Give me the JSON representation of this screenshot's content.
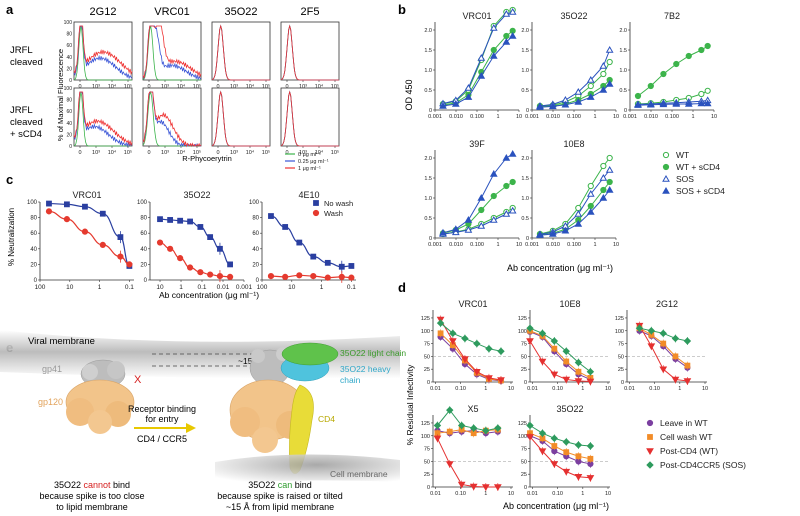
{
  "panel_letters": {
    "a": "a",
    "b": "b",
    "c": "c",
    "d": "d",
    "e": "e"
  },
  "panel_a": {
    "columns": [
      "2G12",
      "VRC01",
      "35O22",
      "2F5"
    ],
    "rows": [
      "JRFL\ncleaved",
      "JRFL\ncleaved\n+ sCD4"
    ],
    "ylabel": "% of Maximal Fluorescence",
    "xlabel": "R-Phycoerytrin",
    "y_ticks": [
      "0",
      "20",
      "40",
      "60",
      "80",
      "100"
    ],
    "x_ticks": [
      "0",
      "10³",
      "10⁴",
      "10⁵"
    ],
    "legend": [
      {
        "label": "0  μg  ml⁻¹",
        "color": "#3cb44b"
      },
      {
        "label": "0.25 μg  ml⁻¹",
        "color": "#3a55d6"
      },
      {
        "label": "1 μg  ml⁻¹",
        "color": "#ee3333"
      }
    ]
  },
  "chart_data": [
    {
      "panel": "b",
      "type": "line",
      "ylabel": "OD 450",
      "xlabel": "Ab concentration (μg ml⁻¹)",
      "x_scale": "log",
      "xlim": [
        0.001,
        10
      ],
      "ylim": [
        0,
        2.5
      ],
      "x_ticks": [
        "0.001",
        "0.010",
        "0.100",
        "1",
        "10"
      ],
      "y_ticks": [
        "0",
        "0.5",
        "1.0",
        "1.5",
        "2.0",
        "2.5"
      ],
      "x": [
        0.0024,
        0.0098,
        0.039,
        0.16,
        0.63,
        2.5,
        5
      ],
      "legend": [
        "WT",
        "WT + sCD4",
        "SOS",
        "SOS + sCD4"
      ],
      "subplots": [
        {
          "title": "VRC01",
          "series": [
            {
              "name": "WT",
              "values": [
                0.15,
                0.22,
                0.5,
                1.25,
                2.1,
                2.45,
                2.5
              ]
            },
            {
              "name": "WT + sCD4",
              "values": [
                0.12,
                0.18,
                0.38,
                0.95,
                1.5,
                1.85,
                1.98
              ]
            },
            {
              "name": "SOS",
              "values": [
                0.16,
                0.24,
                0.55,
                1.3,
                2.05,
                2.4,
                2.45
              ]
            },
            {
              "name": "SOS + sCD4",
              "values": [
                0.1,
                0.15,
                0.32,
                0.85,
                1.35,
                1.7,
                1.85
              ]
            }
          ]
        },
        {
          "title": "35O22",
          "series": [
            {
              "name": "WT",
              "values": [
                0.1,
                0.12,
                0.2,
                0.35,
                0.6,
                0.9,
                1.2
              ]
            },
            {
              "name": "WT + sCD4",
              "values": [
                0.08,
                0.1,
                0.15,
                0.25,
                0.4,
                0.6,
                0.75
              ]
            },
            {
              "name": "SOS",
              "values": [
                0.1,
                0.14,
                0.25,
                0.45,
                0.75,
                1.1,
                1.5
              ]
            },
            {
              "name": "SOS + sCD4",
              "values": [
                0.07,
                0.09,
                0.13,
                0.2,
                0.32,
                0.5,
                0.65
              ]
            }
          ]
        },
        {
          "title": "7B2",
          "series": [
            {
              "name": "WT",
              "values": [
                0.15,
                0.17,
                0.2,
                0.25,
                0.3,
                0.4,
                0.48
              ]
            },
            {
              "name": "WT + sCD4",
              "values": [
                0.35,
                0.6,
                0.9,
                1.15,
                1.35,
                1.5,
                1.6
              ]
            },
            {
              "name": "SOS",
              "values": [
                0.14,
                0.15,
                0.17,
                0.18,
                0.2,
                0.22,
                0.24
              ]
            },
            {
              "name": "SOS + sCD4",
              "values": [
                0.12,
                0.13,
                0.14,
                0.15,
                0.15,
                0.16,
                0.16
              ]
            }
          ]
        },
        {
          "title": "39F",
          "series": [
            {
              "name": "WT",
              "values": [
                0.1,
                0.15,
                0.22,
                0.35,
                0.5,
                0.65,
                0.75
              ]
            },
            {
              "name": "WT + sCD4",
              "values": [
                0.12,
                0.2,
                0.35,
                0.7,
                1.05,
                1.3,
                1.4
              ]
            },
            {
              "name": "SOS",
              "values": [
                0.1,
                0.14,
                0.2,
                0.3,
                0.45,
                0.6,
                0.68
              ]
            },
            {
              "name": "SOS + sCD4",
              "values": [
                0.13,
                0.22,
                0.45,
                1.0,
                1.6,
                2.0,
                2.1
              ]
            }
          ]
        },
        {
          "title": "10E8",
          "series": [
            {
              "name": "WT",
              "values": [
                0.1,
                0.18,
                0.35,
                0.75,
                1.3,
                1.8,
                2.0
              ]
            },
            {
              "name": "WT + sCD4",
              "values": [
                0.08,
                0.12,
                0.22,
                0.45,
                0.8,
                1.2,
                1.4
              ]
            },
            {
              "name": "SOS",
              "values": [
                0.09,
                0.15,
                0.3,
                0.6,
                1.1,
                1.5,
                1.7
              ]
            },
            {
              "name": "SOS + sCD4",
              "values": [
                0.07,
                0.1,
                0.18,
                0.35,
                0.65,
                1.0,
                1.2
              ]
            }
          ]
        }
      ]
    },
    {
      "panel": "c",
      "type": "line",
      "ylabel": "% Neutralization",
      "xlabel": "Ab concentration (μg ml⁻¹)",
      "ylim": [
        0,
        100
      ],
      "y_ticks": [
        "0",
        "20",
        "40",
        "60",
        "80",
        "100"
      ],
      "legend": [
        "No wash",
        "Wash"
      ],
      "subplots": [
        {
          "title": "VRC01",
          "x_ticks": [
            "100",
            "10",
            "1",
            "0.1"
          ],
          "xlim": [
            100,
            0.07
          ],
          "x": [
            50,
            12.5,
            3.1,
            0.78,
            0.2,
            0.1
          ],
          "series": [
            {
              "name": "No wash",
              "values": [
                98,
                97,
                94,
                85,
                55,
                18
              ]
            },
            {
              "name": "Wash",
              "values": [
                88,
                78,
                62,
                45,
                30,
                20
              ]
            }
          ]
        },
        {
          "title": "35O22",
          "x_ticks": [
            "10",
            "1",
            "0.1",
            "0.01",
            "0.001"
          ],
          "xlim": [
            30,
            0.001
          ],
          "x": [
            10,
            3.3,
            1.1,
            0.37,
            0.12,
            0.041,
            0.014,
            0.0046
          ],
          "series": [
            {
              "name": "No wash",
              "values": [
                78,
                77,
                76,
                75,
                68,
                55,
                40,
                20
              ]
            },
            {
              "name": "Wash",
              "values": [
                48,
                40,
                28,
                16,
                10,
                7,
                5,
                4
              ]
            }
          ]
        },
        {
          "title": "4E10",
          "x_ticks": [
            "100",
            "10",
            "1",
            "0.1"
          ],
          "xlim": [
            100,
            0.07
          ],
          "x": [
            50,
            16.7,
            5.6,
            1.9,
            0.62,
            0.21,
            0.1
          ],
          "series": [
            {
              "name": "No wash",
              "values": [
                82,
                68,
                48,
                30,
                22,
                17,
                18
              ]
            },
            {
              "name": "Wash",
              "values": [
                5,
                4,
                6,
                5,
                3,
                4,
                3
              ]
            }
          ]
        }
      ]
    },
    {
      "panel": "d",
      "type": "line",
      "ylabel": "% Residual Infectivity",
      "xlabel": "Ab concentration (μg ml⁻¹)",
      "x_scale": "log",
      "xlim": [
        0.008,
        12
      ],
      "ylim": [
        0,
        125
      ],
      "y_ticks": [
        "0",
        "25",
        "50",
        "75",
        "100",
        "125"
      ],
      "x_ticks": [
        "0.01",
        "0.10",
        "1",
        "10"
      ],
      "legend": [
        "Leave in WT",
        "Cell wash  WT",
        "Post-CD4 (WT)",
        "Post-CD4CCR5 (SOS)"
      ],
      "subplots": [
        {
          "title": "VRC01",
          "x": [
            0.016,
            0.049,
            0.148,
            0.44,
            1.33,
            4
          ],
          "series": [
            {
              "name": "Leave in WT",
              "values": [
                88,
                65,
                35,
                15,
                5,
                2
              ]
            },
            {
              "name": "Cell wash  WT",
              "values": [
                95,
                72,
                42,
                18,
                6,
                3
              ]
            },
            {
              "name": "Post-CD4 (WT)",
              "values": [
                122,
                80,
                45,
                20,
                8,
                4
              ]
            },
            {
              "name": "Post-CD4CCR5 (SOS)",
              "values": [
                115,
                95,
                85,
                75,
                65,
                60
              ]
            }
          ]
        },
        {
          "title": "10E8",
          "x": [
            0.008,
            0.025,
            0.074,
            0.22,
            0.67,
            2
          ],
          "series": [
            {
              "name": "Leave in WT",
              "values": [
                98,
                88,
                60,
                35,
                15,
                5
              ]
            },
            {
              "name": "Cell wash  WT",
              "values": [
                100,
                90,
                65,
                40,
                20,
                8
              ]
            },
            {
              "name": "Post-CD4 (WT)",
              "values": [
                80,
                40,
                15,
                5,
                2,
                1
              ]
            },
            {
              "name": "Post-CD4CCR5 (SOS)",
              "values": [
                105,
                95,
                80,
                60,
                38,
                20
              ]
            }
          ]
        },
        {
          "title": "2G12",
          "x": [
            0.025,
            0.074,
            0.22,
            0.67,
            2
          ],
          "series": [
            {
              "name": "Leave in WT",
              "values": [
                100,
                90,
                70,
                45,
                28
              ]
            },
            {
              "name": "Cell wash  WT",
              "values": [
                105,
                92,
                75,
                50,
                32
              ]
            },
            {
              "name": "Post-CD4 (WT)",
              "values": [
                110,
                70,
                25,
                5,
                2
              ]
            },
            {
              "name": "Post-CD4CCR5 (SOS)",
              "values": [
                105,
                100,
                95,
                85,
                80
              ]
            }
          ]
        },
        {
          "title": "X5",
          "x": [
            0.012,
            0.037,
            0.11,
            0.33,
            1,
            3
          ],
          "series": [
            {
              "name": "Leave in WT",
              "values": [
                110,
                105,
                108,
                110,
                105,
                108
              ]
            },
            {
              "name": "Cell wash  WT",
              "values": [
                105,
                108,
                112,
                105,
                110,
                112
              ]
            },
            {
              "name": "Post-CD4 (WT)",
              "values": [
                95,
                45,
                5,
                1,
                0,
                0
              ]
            },
            {
              "name": "Post-CD4CCR5 (SOS)",
              "values": [
                120,
                150,
                120,
                115,
                110,
                115
              ]
            }
          ]
        },
        {
          "title": "35O22",
          "x": [
            0.008,
            0.025,
            0.074,
            0.22,
            0.67,
            2
          ],
          "series": [
            {
              "name": "Leave in WT",
              "values": [
                100,
                90,
                70,
                60,
                50,
                45
              ]
            },
            {
              "name": "Cell wash  WT",
              "values": [
                105,
                95,
                80,
                68,
                60,
                55
              ]
            },
            {
              "name": "Post-CD4 (WT)",
              "values": [
                98,
                70,
                45,
                30,
                20,
                18
              ]
            },
            {
              "name": "Post-CD4CCR5 (SOS)",
              "values": [
                120,
                105,
                95,
                88,
                82,
                80
              ]
            }
          ]
        }
      ]
    }
  ],
  "panel_e": {
    "viral_membrane": "Viral membrane",
    "cell_membrane": "Cell membrane",
    "gp41": "gp41",
    "gp120": "gp120",
    "x_mark": "X",
    "distance": "~15 Å",
    "light_chain": "35O22 light chain",
    "heavy_chain_1": "35O22 heavy",
    "heavy_chain_2": "chain",
    "cd4": "CD4",
    "arrow_text_1": "Receptor binding",
    "arrow_text_2": "for entry",
    "arrow_text_3": "CD4 / CCR5",
    "caption_left_a": "35O22 ",
    "caption_left_b": "cannot",
    "caption_left_c": " bind",
    "caption_left_2": "because spike is too close",
    "caption_left_3": "to lipid membrane",
    "caption_right_a": "35O22 ",
    "caption_right_b": "can",
    "caption_right_c": " bind",
    "caption_right_2": "because spike is raised or tilted",
    "caption_right_3": "~15 Å from lipid membrane",
    "colors": {
      "gp41": "#b8b8b8",
      "gp120": "#f2c48a",
      "light": "#5fc24b",
      "heavy": "#4fc3dd",
      "cd4": "#e8dc38",
      "red": "#d62020",
      "green": "#2e9b2e"
    }
  },
  "colors": {
    "b": [
      "#3cb44b",
      "#3cb44b",
      "#2a52be",
      "#2a52be"
    ],
    "c": [
      "#2a3fa0",
      "#e53a2f"
    ],
    "d": [
      "#7b3fa0",
      "#f28c28",
      "#e53030",
      "#2e9b5e"
    ]
  }
}
